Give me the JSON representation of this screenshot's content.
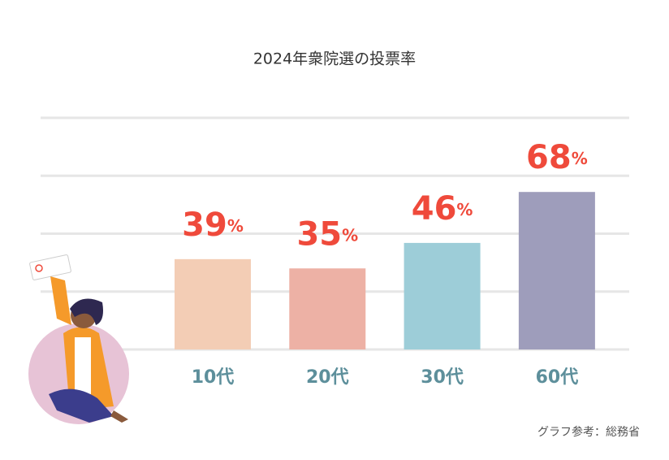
{
  "chart_data": {
    "type": "bar",
    "title": "2024年衆院選の投票率",
    "categories": [
      "10代",
      "20代",
      "30代",
      "60代"
    ],
    "values": [
      39,
      35,
      46,
      68
    ],
    "value_labels": [
      "39%",
      "35%",
      "46%",
      "68%"
    ],
    "colors": [
      "#f3cdb5",
      "#edb1a5",
      "#9dcdd8",
      "#9e9dbb"
    ],
    "ylim": [
      0,
      100
    ],
    "yticks": [
      0,
      25,
      50,
      75,
      100
    ],
    "grid": true,
    "source": "グラフ参考：総務省"
  }
}
